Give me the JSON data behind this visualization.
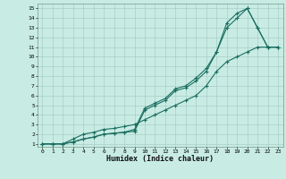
{
  "xlabel": "Humidex (Indice chaleur)",
  "bg_color": "#c8ece4",
  "grid_color": "#a8cec6",
  "line_color": "#1a6e60",
  "line1_x": [
    0,
    1,
    2,
    3,
    4,
    5,
    6,
    7,
    8,
    9,
    10,
    11,
    12,
    13,
    14,
    15,
    16,
    17,
    18,
    19,
    20,
    21,
    22,
    23
  ],
  "line1_y": [
    1,
    1,
    1,
    1.2,
    1.5,
    1.7,
    2.0,
    2.1,
    2.2,
    2.3,
    4.5,
    5.0,
    5.5,
    6.5,
    6.8,
    7.5,
    8.5,
    10.5,
    13.0,
    14.0,
    15.0,
    13.0,
    11.0,
    11.0
  ],
  "line2_x": [
    0,
    1,
    2,
    3,
    4,
    5,
    6,
    7,
    8,
    9,
    10,
    11,
    12,
    13,
    14,
    15,
    16,
    17,
    18,
    19,
    20,
    21,
    22,
    23
  ],
  "line2_y": [
    1,
    1,
    1,
    1.2,
    1.5,
    1.7,
    2.0,
    2.1,
    2.2,
    2.5,
    4.7,
    5.2,
    5.7,
    6.7,
    7.0,
    7.8,
    8.8,
    10.5,
    13.5,
    14.5,
    15.0,
    13.0,
    11.0,
    11.0
  ],
  "line3_x": [
    0,
    1,
    2,
    3,
    4,
    5,
    6,
    7,
    8,
    9,
    10,
    11,
    12,
    13,
    14,
    15,
    16,
    17,
    18,
    19,
    20,
    21,
    22,
    23
  ],
  "line3_y": [
    1,
    1,
    1,
    1.5,
    2.0,
    2.2,
    2.5,
    2.6,
    2.8,
    3.0,
    3.5,
    4.0,
    4.5,
    5.0,
    5.5,
    6.0,
    7.0,
    8.5,
    9.5,
    10.0,
    10.5,
    11.0,
    11.0,
    11.0
  ],
  "xticks": [
    0,
    1,
    2,
    3,
    4,
    5,
    6,
    7,
    8,
    9,
    10,
    11,
    12,
    13,
    14,
    15,
    16,
    17,
    18,
    19,
    20,
    21,
    22,
    23
  ],
  "yticks": [
    1,
    2,
    3,
    4,
    5,
    6,
    7,
    8,
    9,
    10,
    11,
    12,
    13,
    14,
    15
  ],
  "xlim": [
    -0.5,
    23.5
  ],
  "ylim": [
    0.7,
    15.5
  ]
}
